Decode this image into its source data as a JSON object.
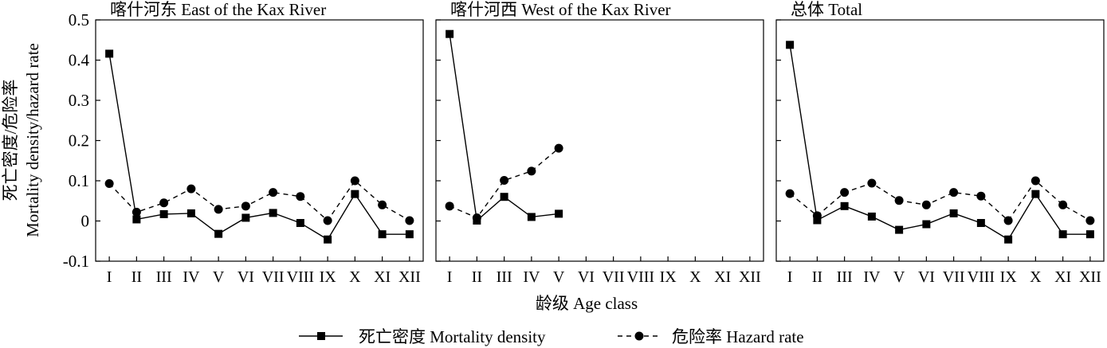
{
  "chart_data": [
    {
      "type": "line",
      "title": "喀什河东 East of the Kax River",
      "categories": [
        "I",
        "II",
        "III",
        "IV",
        "V",
        "VI",
        "VII",
        "VIII",
        "IX",
        "X",
        "XI",
        "XII"
      ],
      "series": [
        {
          "name": "死亡密度 Mortality density",
          "style": "solid-square",
          "values": [
            0.416,
            0.004,
            0.017,
            0.019,
            -0.032,
            0.008,
            0.02,
            -0.005,
            -0.046,
            0.067,
            -0.033,
            -0.033
          ]
        },
        {
          "name": "危险率 Hazard rate",
          "style": "dashed-circle",
          "values": [
            0.093,
            0.022,
            0.045,
            0.08,
            0.029,
            0.037,
            0.071,
            0.061,
            0.001,
            0.1,
            0.04,
            0.001
          ]
        }
      ],
      "ylim": [
        -0.1,
        0.5
      ]
    },
    {
      "type": "line",
      "title": "喀什河西 West of the Kax River",
      "categories": [
        "I",
        "II",
        "III",
        "IV",
        "V",
        "VI",
        "VII",
        "VIII",
        "IX",
        "X",
        "XI",
        "XII"
      ],
      "series": [
        {
          "name": "死亡密度 Mortality density",
          "style": "solid-square",
          "values": [
            0.465,
            0.001,
            0.06,
            0.01,
            0.018,
            null,
            null,
            null,
            null,
            null,
            null,
            null
          ]
        },
        {
          "name": "危险率 Hazard rate",
          "style": "dashed-circle",
          "values": [
            0.037,
            0.008,
            0.101,
            0.124,
            0.181,
            null,
            null,
            null,
            null,
            null,
            null,
            null
          ]
        }
      ],
      "ylim": [
        -0.1,
        0.5
      ]
    },
    {
      "type": "line",
      "title": "总体 Total",
      "categories": [
        "I",
        "II",
        "III",
        "IV",
        "V",
        "VI",
        "VII",
        "VIII",
        "IX",
        "X",
        "XI",
        "XII"
      ],
      "series": [
        {
          "name": "死亡密度 Mortality density",
          "style": "solid-square",
          "values": [
            0.438,
            0.002,
            0.037,
            0.011,
            -0.022,
            -0.008,
            0.019,
            -0.005,
            -0.046,
            0.067,
            -0.033,
            -0.033
          ]
        },
        {
          "name": "危险率 Hazard rate",
          "style": "dashed-circle",
          "values": [
            0.068,
            0.013,
            0.071,
            0.094,
            0.051,
            0.04,
            0.071,
            0.062,
            0.001,
            0.1,
            0.04,
            0.001
          ]
        }
      ],
      "ylim": [
        -0.1,
        0.5
      ]
    }
  ],
  "axes": {
    "ylabel_line1": "死亡密度/危险率",
    "ylabel_line2": "Mortality density/hazard rate",
    "xlabel": "龄级 Age class",
    "y_ticks": [
      -0.1,
      0,
      0.1,
      0.2,
      0.3,
      0.4,
      0.5
    ],
    "y_tick_labels": [
      "-0.1",
      "0",
      "0.1",
      "0.2",
      "0.3",
      "0.4",
      "0.5"
    ]
  },
  "legend": {
    "placement": "bottom",
    "mortality_label": "死亡密度 Mortality density",
    "hazard_label": "危险率 Hazard rate"
  },
  "colors": {
    "line": "#000000",
    "background": "#ffffff"
  }
}
